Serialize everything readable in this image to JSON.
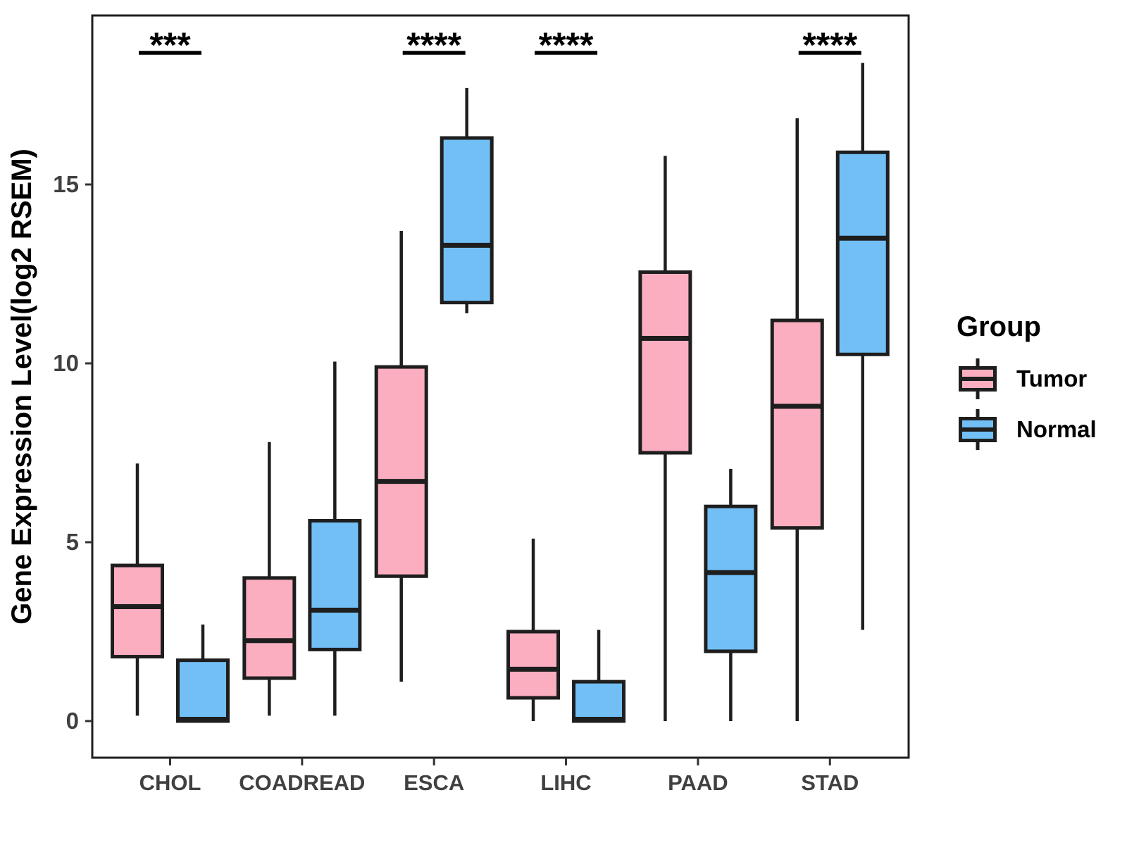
{
  "figure": {
    "background": "#FFFFFF",
    "plot_border_color": "#1E1E1E"
  },
  "axes": {
    "y_title": "Gene Expression Level(log2 RSEM)",
    "y_tick_labels": [
      "0",
      "5",
      "10",
      "15"
    ],
    "x_categories": [
      "CHOL",
      "COADREAD",
      "ESCA",
      "LIHC",
      "PAAD",
      "STAD"
    ]
  },
  "legend": {
    "title": "Group",
    "entries": [
      {
        "label": "Tumor",
        "color": "#FAAEC0"
      },
      {
        "label": "Normal",
        "color": "#72BFF6"
      }
    ]
  },
  "significance": [
    {
      "category": "CHOL",
      "stars": "***"
    },
    {
      "category": "ESCA",
      "stars": "****"
    },
    {
      "category": "LIHC",
      "stars": "****"
    },
    {
      "category": "STAD",
      "stars": "****"
    }
  ],
  "chart_data": {
    "type": "boxplot",
    "title": "",
    "xlabel": "",
    "ylabel": "Gene Expression Level(log2 RSEM)",
    "categories": [
      "CHOL",
      "COADREAD",
      "ESCA",
      "LIHC",
      "PAAD",
      "STAD"
    ],
    "y_tick_values": [
      0,
      5,
      10,
      15
    ],
    "ylim": [
      -1.0,
      19.7
    ],
    "grid": false,
    "legend_position": "right",
    "box_border_color": "#1E1E1E",
    "series": [
      {
        "name": "Tumor",
        "color": "#FAAEC0",
        "boxes": [
          {
            "category": "CHOL",
            "min": 0.15,
            "q1": 1.8,
            "median": 3.2,
            "q3": 4.35,
            "max": 7.2
          },
          {
            "category": "COADREAD",
            "min": 0.15,
            "q1": 1.2,
            "median": 2.25,
            "q3": 4.0,
            "max": 7.8
          },
          {
            "category": "ESCA",
            "min": 1.1,
            "q1": 4.05,
            "median": 6.7,
            "q3": 9.9,
            "max": 13.7
          },
          {
            "category": "LIHC",
            "min": 0.0,
            "q1": 0.65,
            "median": 1.45,
            "q3": 2.5,
            "max": 5.1
          },
          {
            "category": "PAAD",
            "min": 0.0,
            "q1": 7.5,
            "median": 10.7,
            "q3": 12.55,
            "max": 15.8
          },
          {
            "category": "STAD",
            "min": 0.0,
            "q1": 5.4,
            "median": 8.8,
            "q3": 11.2,
            "max": 16.85
          }
        ]
      },
      {
        "name": "Normal",
        "color": "#72BFF6",
        "boxes": [
          {
            "category": "CHOL",
            "min": 0.0,
            "q1": 0.0,
            "median": 0.05,
            "q3": 1.7,
            "max": 2.7
          },
          {
            "category": "COADREAD",
            "min": 0.15,
            "q1": 2.0,
            "median": 3.1,
            "q3": 5.6,
            "max": 10.05
          },
          {
            "category": "ESCA",
            "min": 11.4,
            "q1": 11.7,
            "median": 13.3,
            "q3": 16.3,
            "max": 17.7
          },
          {
            "category": "LIHC",
            "min": 0.0,
            "q1": 0.0,
            "median": 0.05,
            "q3": 1.1,
            "max": 2.55
          },
          {
            "category": "PAAD",
            "min": 0.0,
            "q1": 1.95,
            "median": 4.15,
            "q3": 6.0,
            "max": 7.05
          },
          {
            "category": "STAD",
            "min": 2.55,
            "q1": 10.25,
            "median": 13.5,
            "q3": 15.9,
            "max": 18.4
          }
        ]
      }
    ]
  }
}
